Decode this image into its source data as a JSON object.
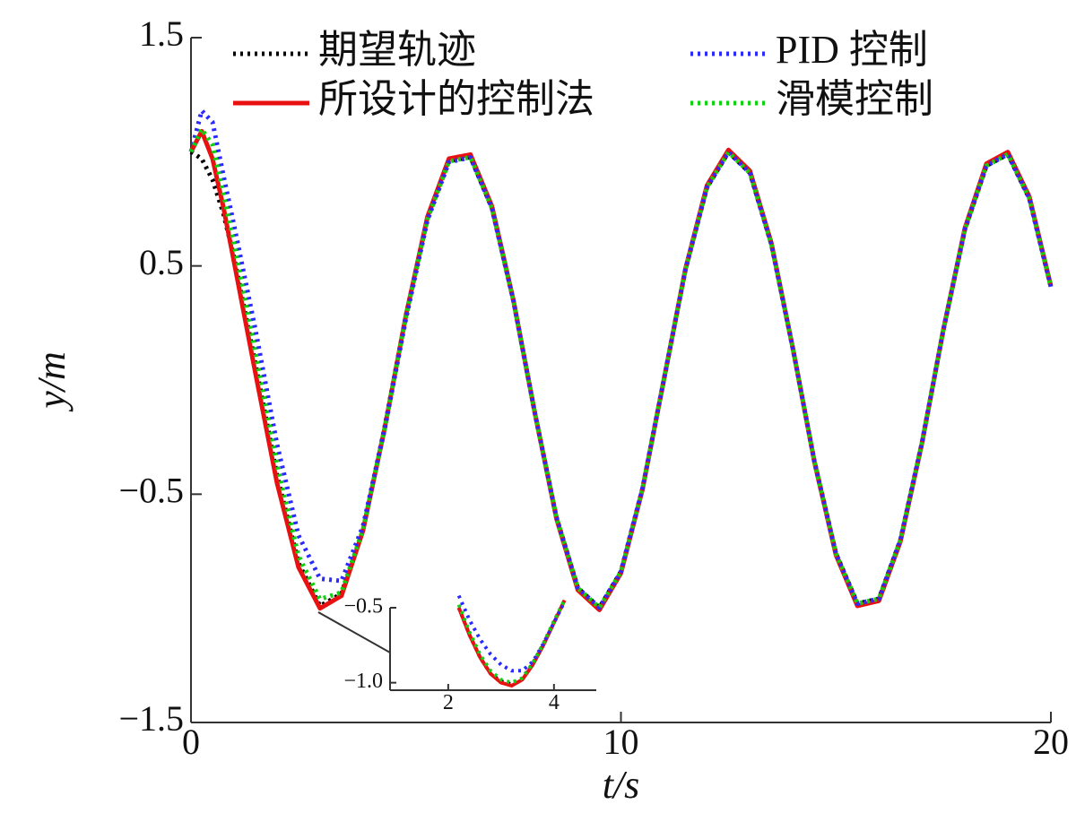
{
  "chart_data": [
    {
      "type": "line",
      "xlabel": "t/s",
      "ylabel": "y/m",
      "x": [
        0,
        0.25,
        0.5,
        0.75,
        1,
        1.5,
        2,
        2.5,
        3,
        3.5,
        4,
        4.5,
        5,
        5.5,
        6,
        6.5,
        7,
        7.5,
        8,
        8.5,
        9,
        9.5,
        10,
        10.5,
        11,
        11.5,
        12,
        12.5,
        13,
        13.5,
        14,
        14.5,
        15,
        15.5,
        16,
        16.5,
        17,
        17.5,
        18,
        18.5,
        19,
        19.5,
        20
      ],
      "series": [
        {
          "name": "期望轨迹",
          "color": "#000000",
          "dash": "dotted",
          "values": [
            1,
            0.969,
            0.878,
            0.732,
            0.54,
            0.071,
            -0.416,
            -0.801,
            -0.99,
            -0.936,
            -0.654,
            -0.211,
            0.284,
            0.709,
            0.96,
            0.977,
            0.754,
            0.347,
            -0.146,
            -0.602,
            -0.911,
            -0.997,
            -0.839,
            -0.476,
            0.004,
            0.483,
            0.844,
            0.998,
            0.907,
            0.594,
            0.137,
            -0.357,
            -0.76,
            -0.979,
            -0.958,
            -0.7,
            -0.275,
            0.22,
            0.66,
            0.939,
            0.989,
            0.795,
            0.408
          ]
        },
        {
          "name": "所设计的控制法",
          "color": "#e81010",
          "dash": "solid",
          "values": [
            1,
            1.09,
            0.97,
            0.76,
            0.52,
            0.03,
            -0.45,
            -0.82,
            -1.0,
            -0.945,
            -0.66,
            -0.215,
            0.285,
            0.715,
            0.97,
            0.988,
            0.762,
            0.35,
            -0.147,
            -0.607,
            -0.92,
            -1.007,
            -0.846,
            -0.48,
            0.004,
            0.487,
            0.852,
            1.008,
            0.916,
            0.6,
            0.138,
            -0.36,
            -0.767,
            -0.989,
            -0.967,
            -0.707,
            -0.278,
            0.222,
            0.666,
            0.948,
            0.999,
            0.803,
            0.412
          ]
        },
        {
          "name": "PID 控制",
          "color": "#2a2aff",
          "dash": "dotted",
          "values": [
            1,
            1.18,
            1.13,
            0.9,
            0.68,
            0.22,
            -0.28,
            -0.68,
            -0.87,
            -0.88,
            -0.64,
            -0.22,
            0.27,
            0.7,
            0.955,
            0.975,
            0.753,
            0.347,
            -0.146,
            -0.602,
            -0.911,
            -0.997,
            -0.839,
            -0.476,
            0.004,
            0.483,
            0.844,
            0.998,
            0.907,
            0.594,
            0.137,
            -0.357,
            -0.76,
            -0.979,
            -0.958,
            -0.7,
            -0.275,
            0.22,
            0.66,
            0.939,
            0.989,
            0.795,
            0.408
          ]
        },
        {
          "name": "滑模控制",
          "color": "#10d010",
          "dash": "dotted",
          "values": [
            1,
            1.1,
            1.03,
            0.82,
            0.6,
            0.12,
            -0.37,
            -0.77,
            -0.96,
            -0.93,
            -0.655,
            -0.215,
            0.28,
            0.705,
            0.958,
            0.976,
            0.753,
            0.347,
            -0.146,
            -0.602,
            -0.911,
            -0.997,
            -0.839,
            -0.476,
            0.004,
            0.483,
            0.844,
            0.998,
            0.907,
            0.594,
            0.137,
            -0.357,
            -0.76,
            -0.979,
            -0.958,
            -0.7,
            -0.275,
            0.22,
            0.66,
            0.939,
            0.989,
            0.795,
            0.408
          ]
        }
      ],
      "xlim": [
        0,
        20
      ],
      "xticks": [
        0,
        10,
        20
      ],
      "ylim": [
        -1.5,
        1.5
      ],
      "yticks": [
        1.5,
        0.5,
        {
          "value": -0.5,
          "label": "−0.5"
        },
        {
          "value": -1.5,
          "label": "−1.5"
        }
      ]
    },
    {
      "type": "line",
      "x": [
        2.2,
        2.4,
        2.6,
        2.8,
        3.0,
        3.2,
        3.4,
        3.6,
        3.8,
        4.0,
        4.2
      ],
      "series": [
        {
          "color": "#000000",
          "dash": "dotted",
          "values": [
            -0.5,
            -0.68,
            -0.83,
            -0.94,
            -0.99,
            -1.01,
            -0.97,
            -0.87,
            -0.74,
            -0.59,
            -0.45
          ]
        },
        {
          "color": "#e81010",
          "dash": "solid",
          "values": [
            -0.5,
            -0.68,
            -0.83,
            -0.94,
            -1.0,
            -1.02,
            -0.98,
            -0.88,
            -0.75,
            -0.6,
            -0.45
          ]
        },
        {
          "color": "#2a2aff",
          "dash": "dotted",
          "values": [
            -0.42,
            -0.58,
            -0.71,
            -0.81,
            -0.88,
            -0.92,
            -0.92,
            -0.86,
            -0.74,
            -0.6,
            -0.46
          ]
        },
        {
          "color": "#10d010",
          "dash": "dotted",
          "values": [
            -0.48,
            -0.66,
            -0.81,
            -0.92,
            -0.98,
            -1.0,
            -0.97,
            -0.87,
            -0.74,
            -0.59,
            -0.45
          ]
        }
      ],
      "xlim": [
        0.9,
        4.8
      ],
      "xticks": [
        2,
        4
      ],
      "ylim": [
        -1.05,
        -0.5
      ],
      "yticks": [
        {
          "value": -0.5,
          "label": "−0.5"
        },
        {
          "value": -1,
          "label": "−1.0"
        }
      ]
    }
  ]
}
